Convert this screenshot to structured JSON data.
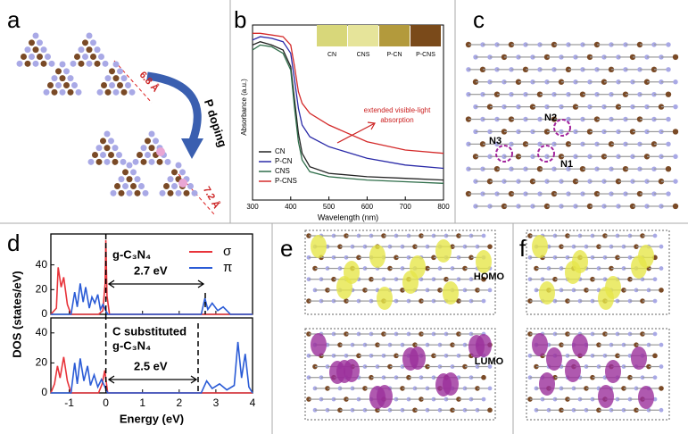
{
  "panel_a": {
    "label": "a",
    "distance_1": "6.8 Å",
    "arrow_text": "P doping",
    "distance_2": "7.2 Å"
  },
  "panel_b": {
    "label": "b",
    "type": "line",
    "xlabel": "Wavelength (nm)",
    "ylabel": "Absorbance (a.u.)",
    "xlim": [
      300,
      800
    ],
    "xticks": [
      300,
      400,
      500,
      600,
      700,
      800
    ],
    "ylim": [
      0,
      1.05
    ],
    "x": [
      300,
      320,
      350,
      380,
      400,
      410,
      420,
      430,
      450,
      500,
      600,
      700,
      800
    ],
    "series": [
      {
        "name": "CN",
        "color": "#222222",
        "values": [
          0.93,
          0.95,
          0.93,
          0.9,
          0.8,
          0.6,
          0.4,
          0.28,
          0.2,
          0.16,
          0.14,
          0.13,
          0.12
        ]
      },
      {
        "name": "P-CN",
        "color": "#2a2aa8",
        "values": [
          0.96,
          0.98,
          0.97,
          0.95,
          0.88,
          0.72,
          0.55,
          0.45,
          0.38,
          0.32,
          0.25,
          0.21,
          0.19
        ]
      },
      {
        "name": "CNS",
        "color": "#2f6e4a",
        "values": [
          0.9,
          0.93,
          0.92,
          0.88,
          0.78,
          0.55,
          0.35,
          0.24,
          0.17,
          0.14,
          0.12,
          0.11,
          0.1
        ]
      },
      {
        "name": "P-CNS",
        "color": "#d42a2a",
        "values": [
          1.0,
          1.0,
          0.99,
          0.98,
          0.93,
          0.8,
          0.65,
          0.58,
          0.52,
          0.45,
          0.35,
          0.3,
          0.28
        ]
      }
    ],
    "swatches": [
      {
        "name": "CN",
        "color": "#d8d77a"
      },
      {
        "name": "CNS",
        "color": "#e6e49a"
      },
      {
        "name": "P-CN",
        "color": "#b39a3c"
      },
      {
        "name": "P-CNS",
        "color": "#7a4a1a"
      }
    ],
    "annotation": [
      "extended visible-light",
      "absorption"
    ]
  },
  "panel_c": {
    "label": "c",
    "sites": [
      "N2",
      "N3",
      "N1"
    ]
  },
  "panel_d": {
    "label": "d",
    "type": "line",
    "xlabel": "Energy  (eV)",
    "ylabel": "DOS (states/eV)",
    "xlim": [
      -1.5,
      4
    ],
    "xticks": [
      -1,
      0,
      1,
      2,
      3,
      4
    ],
    "legend": [
      {
        "name": "σ",
        "color": "#e8333a"
      },
      {
        "name": "π",
        "color": "#2a5bd6"
      }
    ],
    "subplots": [
      {
        "text": [
          "g-C₃N₄"
        ],
        "gap": "2.7 eV",
        "ylim": [
          0,
          65
        ],
        "yticks": [
          0,
          20,
          40
        ],
        "series": [
          {
            "x": [
              -1.5,
              -1.35,
              -1.3,
              -1.22,
              -1.15,
              -1.05,
              -0.95,
              -0.2,
              -0.08,
              -0.02,
              0,
              0.03,
              0.1,
              4
            ],
            "values": [
              0,
              5,
              38,
              22,
              30,
              8,
              0,
              0,
              3,
              25,
              60,
              15,
              0,
              0
            ]
          },
          {
            "x": [
              -1.5,
              -0.95,
              -0.85,
              -0.78,
              -0.7,
              -0.62,
              -0.55,
              -0.45,
              -0.38,
              -0.3,
              -0.22,
              -0.15,
              -0.08,
              0.05,
              2.6,
              2.7,
              2.78,
              2.9,
              3.05,
              3.2,
              3.4,
              4
            ],
            "values": [
              0,
              0,
              18,
              6,
              25,
              10,
              22,
              5,
              14,
              9,
              16,
              4,
              8,
              0,
              0,
              13,
              4,
              9,
              3,
              6,
              0,
              0
            ]
          }
        ]
      },
      {
        "text": [
          "C substituted",
          "g-C₃N₄"
        ],
        "gap": "2.5 eV",
        "ylim": [
          0,
          50
        ],
        "yticks": [
          0,
          20,
          40
        ],
        "series": [
          {
            "x": [
              -1.5,
              -1.4,
              -1.32,
              -1.25,
              -1.15,
              -1.05,
              -0.95,
              -0.2,
              -0.1,
              -0.03,
              0.05,
              4
            ],
            "values": [
              0,
              6,
              18,
              10,
              24,
              8,
              0,
              0,
              6,
              15,
              0,
              0
            ]
          },
          {
            "x": [
              -1.5,
              -0.95,
              -0.85,
              -0.78,
              -0.7,
              -0.6,
              -0.5,
              -0.42,
              -0.32,
              -0.22,
              -0.12,
              0.05,
              2.6,
              2.75,
              2.9,
              3.1,
              3.3,
              3.5,
              3.6,
              3.7,
              3.8,
              3.9,
              4
            ],
            "values": [
              0,
              0,
              20,
              6,
              23,
              8,
              18,
              5,
              12,
              4,
              9,
              0,
              0,
              8,
              3,
              6,
              2,
              5,
              34,
              10,
              26,
              4,
              0
            ]
          }
        ]
      }
    ]
  },
  "panel_e": {
    "label": "e",
    "homo": "HOMO",
    "lumo": "LUMO"
  },
  "panel_f": {
    "label": "f"
  }
}
